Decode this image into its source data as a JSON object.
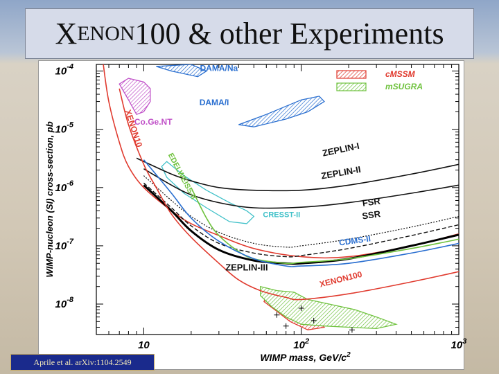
{
  "slide": {
    "title_first_letter": "X",
    "title_smallcaps": "ENON",
    "title_rest": "100 & other Experiments",
    "citation": "Aprile et al. arXiv:1104.2549"
  },
  "chart_data": {
    "type": "line",
    "xscale": "log",
    "yscale": "log",
    "xlim": [
      5,
      1000
    ],
    "ylim": [
      3e-09,
      0.00013
    ],
    "xlabel": "WIMP mass, GeV/c",
    "xlabel_sup": "2",
    "ylabel": "WIMP-nucleon (SI) cross-section, pb",
    "xticks": [
      {
        "value": 10,
        "base": "10",
        "exp": ""
      },
      {
        "value": 100,
        "base": "10",
        "exp": "2"
      },
      {
        "value": 1000,
        "base": "10",
        "exp": "3"
      }
    ],
    "yticks": [
      {
        "value": 0.0001,
        "base": "10",
        "exp": "-4"
      },
      {
        "value": 1e-05,
        "base": "10",
        "exp": "-5"
      },
      {
        "value": 1e-06,
        "base": "10",
        "exp": "-6"
      },
      {
        "value": 1e-07,
        "base": "10",
        "exp": "-7"
      },
      {
        "value": 1e-08,
        "base": "10",
        "exp": "-8"
      }
    ],
    "series": [
      {
        "name": "XENON10",
        "color": "#e03a2e",
        "width": 1.6,
        "dash": "",
        "points": [
          [
            5.5,
            0.00015
          ],
          [
            6,
            3e-05
          ],
          [
            7,
            6e-06
          ],
          [
            8,
            2.3e-06
          ],
          [
            10,
            1e-06
          ],
          [
            15,
            4e-07
          ],
          [
            20,
            2.4e-07
          ],
          [
            30,
            1.5e-07
          ],
          [
            50,
            9e-08
          ],
          [
            100,
            6.5e-08
          ],
          [
            200,
            6.5e-08
          ],
          [
            500,
            1e-07
          ],
          [
            1000,
            1.6e-07
          ]
        ]
      },
      {
        "name": "ZEPLIN-I",
        "color": "#111111",
        "width": 1.6,
        "dash": "",
        "points": [
          [
            9,
            3.2e-06
          ],
          [
            10,
            2.8e-06
          ],
          [
            15,
            1.7e-06
          ],
          [
            20,
            1.3e-06
          ],
          [
            30,
            1e-06
          ],
          [
            50,
            9e-07
          ],
          [
            100,
            9e-07
          ],
          [
            200,
            1.1e-06
          ],
          [
            500,
            1.7e-06
          ],
          [
            1000,
            2.5e-06
          ]
        ]
      },
      {
        "name": "ZEPLIN-II",
        "color": "#111111",
        "width": 1.6,
        "dash": "",
        "points": [
          [
            10,
            2.1e-06
          ],
          [
            15,
            1.1e-06
          ],
          [
            20,
            7.5e-07
          ],
          [
            30,
            5.5e-07
          ],
          [
            50,
            4.5e-07
          ],
          [
            100,
            4.6e-07
          ],
          [
            200,
            5.5e-07
          ],
          [
            500,
            8e-07
          ],
          [
            1000,
            1.1e-06
          ]
        ]
      },
      {
        "name": "FSR",
        "color": "#111111",
        "width": 1.2,
        "dash": "2 2",
        "points": [
          [
            10,
            1.6e-06
          ],
          [
            15,
            6e-07
          ],
          [
            20,
            3.2e-07
          ],
          [
            30,
            1.7e-07
          ],
          [
            50,
            1.1e-07
          ],
          [
            80,
            9.5e-08
          ],
          [
            100,
            1e-07
          ],
          [
            200,
            1.3e-07
          ],
          [
            500,
            2.1e-07
          ],
          [
            1000,
            3.2e-07
          ]
        ]
      },
      {
        "name": "SSR",
        "color": "#111111",
        "width": 1.4,
        "dash": "6 3",
        "points": [
          [
            10,
            1.2e-06
          ],
          [
            15,
            4.5e-07
          ],
          [
            20,
            2.2e-07
          ],
          [
            30,
            1.1e-07
          ],
          [
            50,
            7.5e-08
          ],
          [
            80,
            6.5e-08
          ],
          [
            100,
            6.8e-08
          ],
          [
            200,
            9e-08
          ],
          [
            500,
            1.5e-07
          ],
          [
            1000,
            2.3e-07
          ]
        ]
      },
      {
        "name": "ZEPLIN-III",
        "color": "#000000",
        "width": 3,
        "dash": "",
        "points": [
          [
            10,
            1.1e-06
          ],
          [
            15,
            4e-07
          ],
          [
            20,
            1.8e-07
          ],
          [
            30,
            8.5e-08
          ],
          [
            50,
            5.6e-08
          ],
          [
            80,
            5e-08
          ],
          [
            100,
            5e-08
          ],
          [
            200,
            6e-08
          ],
          [
            500,
            1e-07
          ],
          [
            1000,
            1.55e-07
          ]
        ]
      },
      {
        "name": "EDELWEISS-II",
        "color": "#6fc23e",
        "width": 1.6,
        "dash": "",
        "points": [
          [
            20,
            1e-06
          ],
          [
            25,
            3e-07
          ],
          [
            30,
            1.5e-07
          ],
          [
            40,
            8e-08
          ],
          [
            50,
            6e-08
          ],
          [
            80,
            5e-08
          ],
          [
            100,
            5.2e-08
          ],
          [
            200,
            6e-08
          ],
          [
            500,
            9e-08
          ],
          [
            1000,
            1.3e-07
          ]
        ]
      },
      {
        "name": "CDMS-II",
        "color": "#2a6fd0",
        "width": 1.6,
        "dash": "",
        "points": [
          [
            10,
            3e-06
          ],
          [
            15,
            8e-07
          ],
          [
            20,
            3e-07
          ],
          [
            30,
            1.2e-07
          ],
          [
            50,
            6e-08
          ],
          [
            80,
            4.5e-08
          ],
          [
            100,
            4.5e-08
          ],
          [
            200,
            5e-08
          ],
          [
            500,
            7.5e-08
          ],
          [
            1000,
            1.1e-07
          ]
        ]
      },
      {
        "name": "XENON100",
        "color": "#e03a2e",
        "width": 1.6,
        "dash": "",
        "points": [
          [
            7,
            5e-05
          ],
          [
            8,
            1.2e-05
          ],
          [
            10,
            2.5e-06
          ],
          [
            12,
            1e-06
          ],
          [
            15,
            3.5e-07
          ],
          [
            20,
            1.4e-07
          ],
          [
            30,
            5e-08
          ],
          [
            40,
            2.6e-08
          ],
          [
            55,
            1.7e-08
          ],
          [
            80,
            1.3e-08
          ],
          [
            100,
            1.2e-08
          ],
          [
            200,
            1.5e-08
          ],
          [
            500,
            2.4e-08
          ],
          [
            1000,
            3.6e-08
          ]
        ]
      }
    ],
    "regions": [
      {
        "name": "DAMA/Na",
        "stroke": "#2a6fd0",
        "fill": "#2a6fd0",
        "fill_style": "hatch",
        "points": [
          [
            12,
            0.00012
          ],
          [
            15,
            0.0001
          ],
          [
            22,
            8e-05
          ],
          [
            25,
            0.0001
          ],
          [
            20,
            0.00013
          ]
        ]
      },
      {
        "name": "DAMA/I",
        "stroke": "#2a6fd0",
        "fill": "#2a6fd0",
        "fill_style": "hatch",
        "points": [
          [
            40,
            1.2e-05
          ],
          [
            60,
            1.8e-05
          ],
          [
            100,
            3.2e-05
          ],
          [
            130,
            3.7e-05
          ],
          [
            140,
            3e-05
          ],
          [
            110,
            2e-05
          ],
          [
            80,
            1.5e-05
          ],
          [
            50,
            1.1e-05
          ]
        ]
      },
      {
        "name": "Co.Ge.NT",
        "stroke": "#c050c8",
        "fill": "#c050c8",
        "fill_style": "hatch",
        "points": [
          [
            7,
            6e-05
          ],
          [
            8,
            3.2e-05
          ],
          [
            9,
            1.8e-05
          ],
          [
            10,
            2e-05
          ],
          [
            11,
            3e-05
          ],
          [
            11,
            5e-05
          ],
          [
            10,
            6.5e-05
          ],
          [
            8,
            7.5e-05
          ]
        ]
      },
      {
        "name": "CRESST-II",
        "stroke": "#3ec0c8",
        "fill": "none",
        "fill_style": "outline",
        "points": [
          [
            14,
            2.8e-06
          ],
          [
            18,
            1.6e-06
          ],
          [
            25,
            9e-07
          ],
          [
            35,
            5.5e-07
          ],
          [
            45,
            4e-07
          ],
          [
            50,
            3.2e-07
          ],
          [
            45,
            2.4e-07
          ],
          [
            35,
            2.6e-07
          ],
          [
            25,
            4.5e-07
          ],
          [
            18,
            8e-07
          ],
          [
            14,
            1.5e-06
          ],
          [
            13,
            2.3e-06
          ]
        ]
      },
      {
        "name": "cMSSM",
        "stroke": "#e03a2e",
        "fill": "#e03a2e",
        "fill_style": "hatch",
        "points": [
          [
            60,
            1.4e-08
          ],
          [
            75,
            1e-08
          ],
          [
            100,
            7e-09
          ],
          [
            130,
            5e-09
          ],
          [
            140,
            4e-09
          ],
          [
            110,
            3.6e-09
          ],
          [
            85,
            5e-09
          ],
          [
            70,
            7.5e-09
          ],
          [
            58,
            1.1e-08
          ]
        ]
      },
      {
        "name": "mSUGRA",
        "stroke": "#6fc23e",
        "fill": "#6fc23e",
        "fill_style": "hatch",
        "points": [
          [
            55,
            2e-08
          ],
          [
            70,
            1.7e-08
          ],
          [
            90,
            1.6e-08
          ],
          [
            110,
            1.2e-08
          ],
          [
            150,
            1e-08
          ],
          [
            220,
            8e-09
          ],
          [
            300,
            6e-09
          ],
          [
            400,
            4.5e-09
          ],
          [
            300,
            3.8e-09
          ],
          [
            200,
            4e-09
          ],
          [
            140,
            4.2e-09
          ],
          [
            100,
            4.5e-09
          ],
          [
            80,
            6e-09
          ],
          [
            65,
            9e-09
          ],
          [
            55,
            1.4e-08
          ]
        ]
      }
    ],
    "markers": [
      {
        "x": 70,
        "y": 6.5e-09
      },
      {
        "x": 80,
        "y": 4.2e-09
      },
      {
        "x": 100,
        "y": 8.5e-09
      },
      {
        "x": 120,
        "y": 5.2e-09
      },
      {
        "x": 210,
        "y": 3.6e-09
      }
    ],
    "legend": [
      {
        "label": "cMSSM",
        "color": "#e03a2e"
      },
      {
        "label": "mSUGRA",
        "color": "#6fc23e"
      }
    ],
    "curve_labels": [
      {
        "text": "DAMA/Na",
        "color": "#2a6fd0",
        "x": 30,
        "y": 0.0001,
        "rotate": 0,
        "size": 12
      },
      {
        "text": "DAMA/I",
        "color": "#2a6fd0",
        "x": 28,
        "y": 2.6e-05,
        "rotate": 0,
        "size": 12
      },
      {
        "text": "Co.Ge.NT",
        "color": "#c050c8",
        "x": 11.5,
        "y": 1.2e-05,
        "rotate": 0,
        "size": 12
      },
      {
        "text": "XENON10",
        "color": "#e03a2e",
        "x": 8.3,
        "y": 1e-05,
        "rotate": 72,
        "size": 12
      },
      {
        "text": "EDELWEISS-II",
        "color": "#6fc23e",
        "x": 17,
        "y": 1.5e-06,
        "rotate": 62,
        "size": 11
      },
      {
        "text": "CRESST-II",
        "color": "#3ec0c8",
        "x": 75,
        "y": 3.1e-07,
        "rotate": 0,
        "size": 11
      },
      {
        "text": "ZEPLIN-I",
        "color": "#111111",
        "x": 180,
        "y": 4e-06,
        "rotate": -12,
        "size": 13
      },
      {
        "text": "ZEPLIN-II",
        "color": "#111111",
        "x": 180,
        "y": 1.6e-06,
        "rotate": -10,
        "size": 13
      },
      {
        "text": "FSR",
        "color": "#111111",
        "x": 280,
        "y": 5e-07,
        "rotate": -8,
        "size": 13
      },
      {
        "text": "SSR",
        "color": "#111111",
        "x": 280,
        "y": 3e-07,
        "rotate": -8,
        "size": 13
      },
      {
        "text": "CDMS-II",
        "color": "#2a6fd0",
        "x": 220,
        "y": 1.1e-07,
        "rotate": -8,
        "size": 12
      },
      {
        "text": "XENON100",
        "color": "#e03a2e",
        "x": 180,
        "y": 2.4e-08,
        "rotate": -14,
        "size": 12
      },
      {
        "text": "ZEPLIN-III",
        "color": "#111111",
        "x": 45,
        "y": 3.8e-08,
        "rotate": 0,
        "size": 13
      }
    ]
  }
}
